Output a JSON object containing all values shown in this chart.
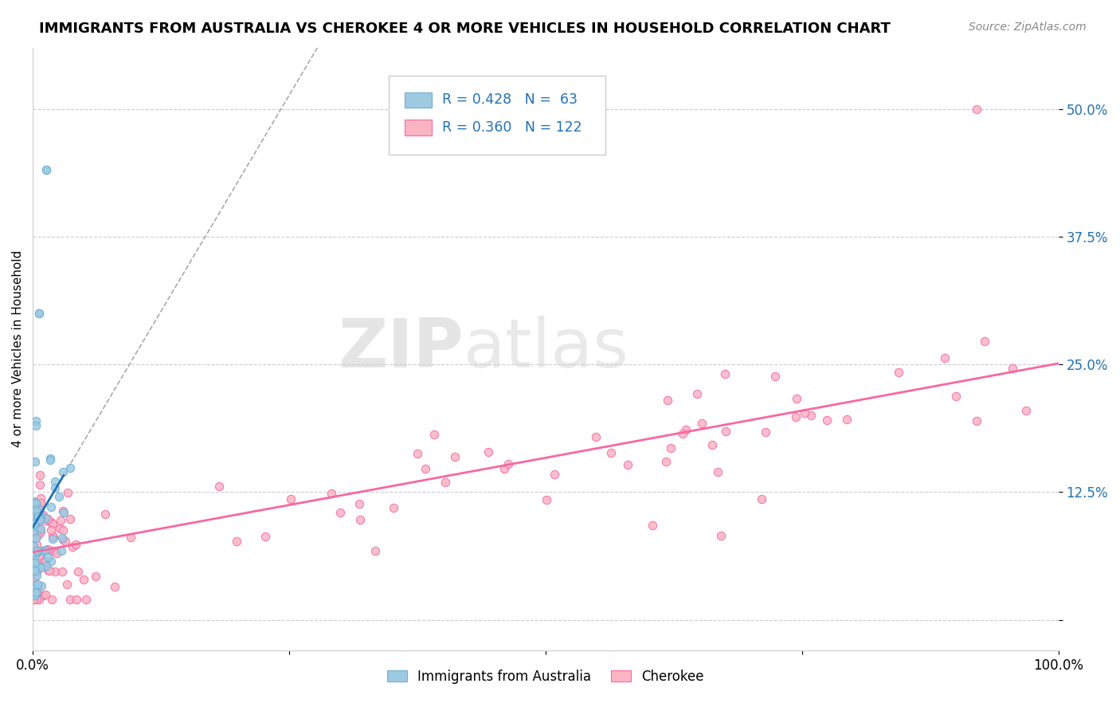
{
  "title": "IMMIGRANTS FROM AUSTRALIA VS CHEROKEE 4 OR MORE VEHICLES IN HOUSEHOLD CORRELATION CHART",
  "source_text": "Source: ZipAtlas.com",
  "ylabel": "4 or more Vehicles in Household",
  "ytick_vals": [
    0.0,
    0.125,
    0.25,
    0.375,
    0.5
  ],
  "ytick_labels": [
    "",
    "12.5%",
    "25.0%",
    "37.5%",
    "50.0%"
  ],
  "xlim": [
    0.0,
    1.0
  ],
  "ylim": [
    -0.03,
    0.56
  ],
  "legend_label_blue": "Immigrants from Australia",
  "legend_label_pink": "Cherokee",
  "blue_color": "#9ecae1",
  "blue_edge_color": "#6baed6",
  "pink_color": "#fbb4c3",
  "pink_edge_color": "#f768a1",
  "blue_line_color": "#2171b5",
  "pink_line_color": "#f768a1",
  "ref_line_color": "#aaaaaa",
  "title_fontsize": 13,
  "legend_text_color": "#2171b5",
  "ytick_color": "#2171b5"
}
